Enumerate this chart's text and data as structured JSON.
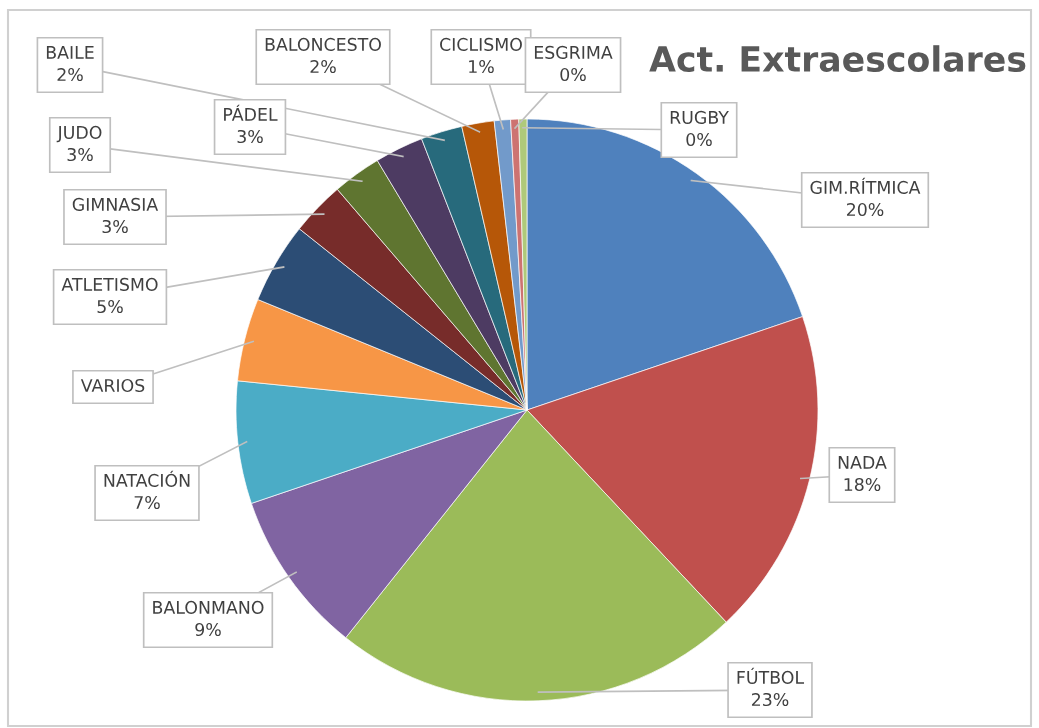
{
  "chart_data": {
    "type": "pie",
    "title": "Act. Extraescolares",
    "categories": [
      "GIM.RÍTMICA",
      "NADA",
      "FÚTBOL",
      "BALONMANO",
      "NATACIÓN",
      "VARIOS",
      "ATLETISMO",
      "GIMNASIA",
      "JUDO",
      "PÁDEL",
      "BAILE",
      "BALONCESTO",
      "CICLISMO",
      "ESGRIMA",
      "RUGBY"
    ],
    "values": [
      19.8,
      18.2,
      22.7,
      9.1,
      6.8,
      4.6,
      4.5,
      3.0,
      2.7,
      2.7,
      2.3,
      1.8,
      0.9,
      0.45,
      0.45
    ],
    "value_labels": [
      "20%",
      "18%",
      "23%",
      "9%",
      "7%",
      null,
      "5%",
      "3%",
      "3%",
      "3%",
      "2%",
      "2%",
      "1%",
      "0%",
      "0%"
    ],
    "colors": [
      "#4f81bd",
      "#c0504d",
      "#9bbb59",
      "#8064a2",
      "#4bacc6",
      "#f79646",
      "#2c4d75",
      "#772c2a",
      "#5f7530",
      "#4d3b62",
      "#276a7c",
      "#b65708",
      "#729aca",
      "#cd7371",
      "#afc97a"
    ],
    "legend": false
  }
}
